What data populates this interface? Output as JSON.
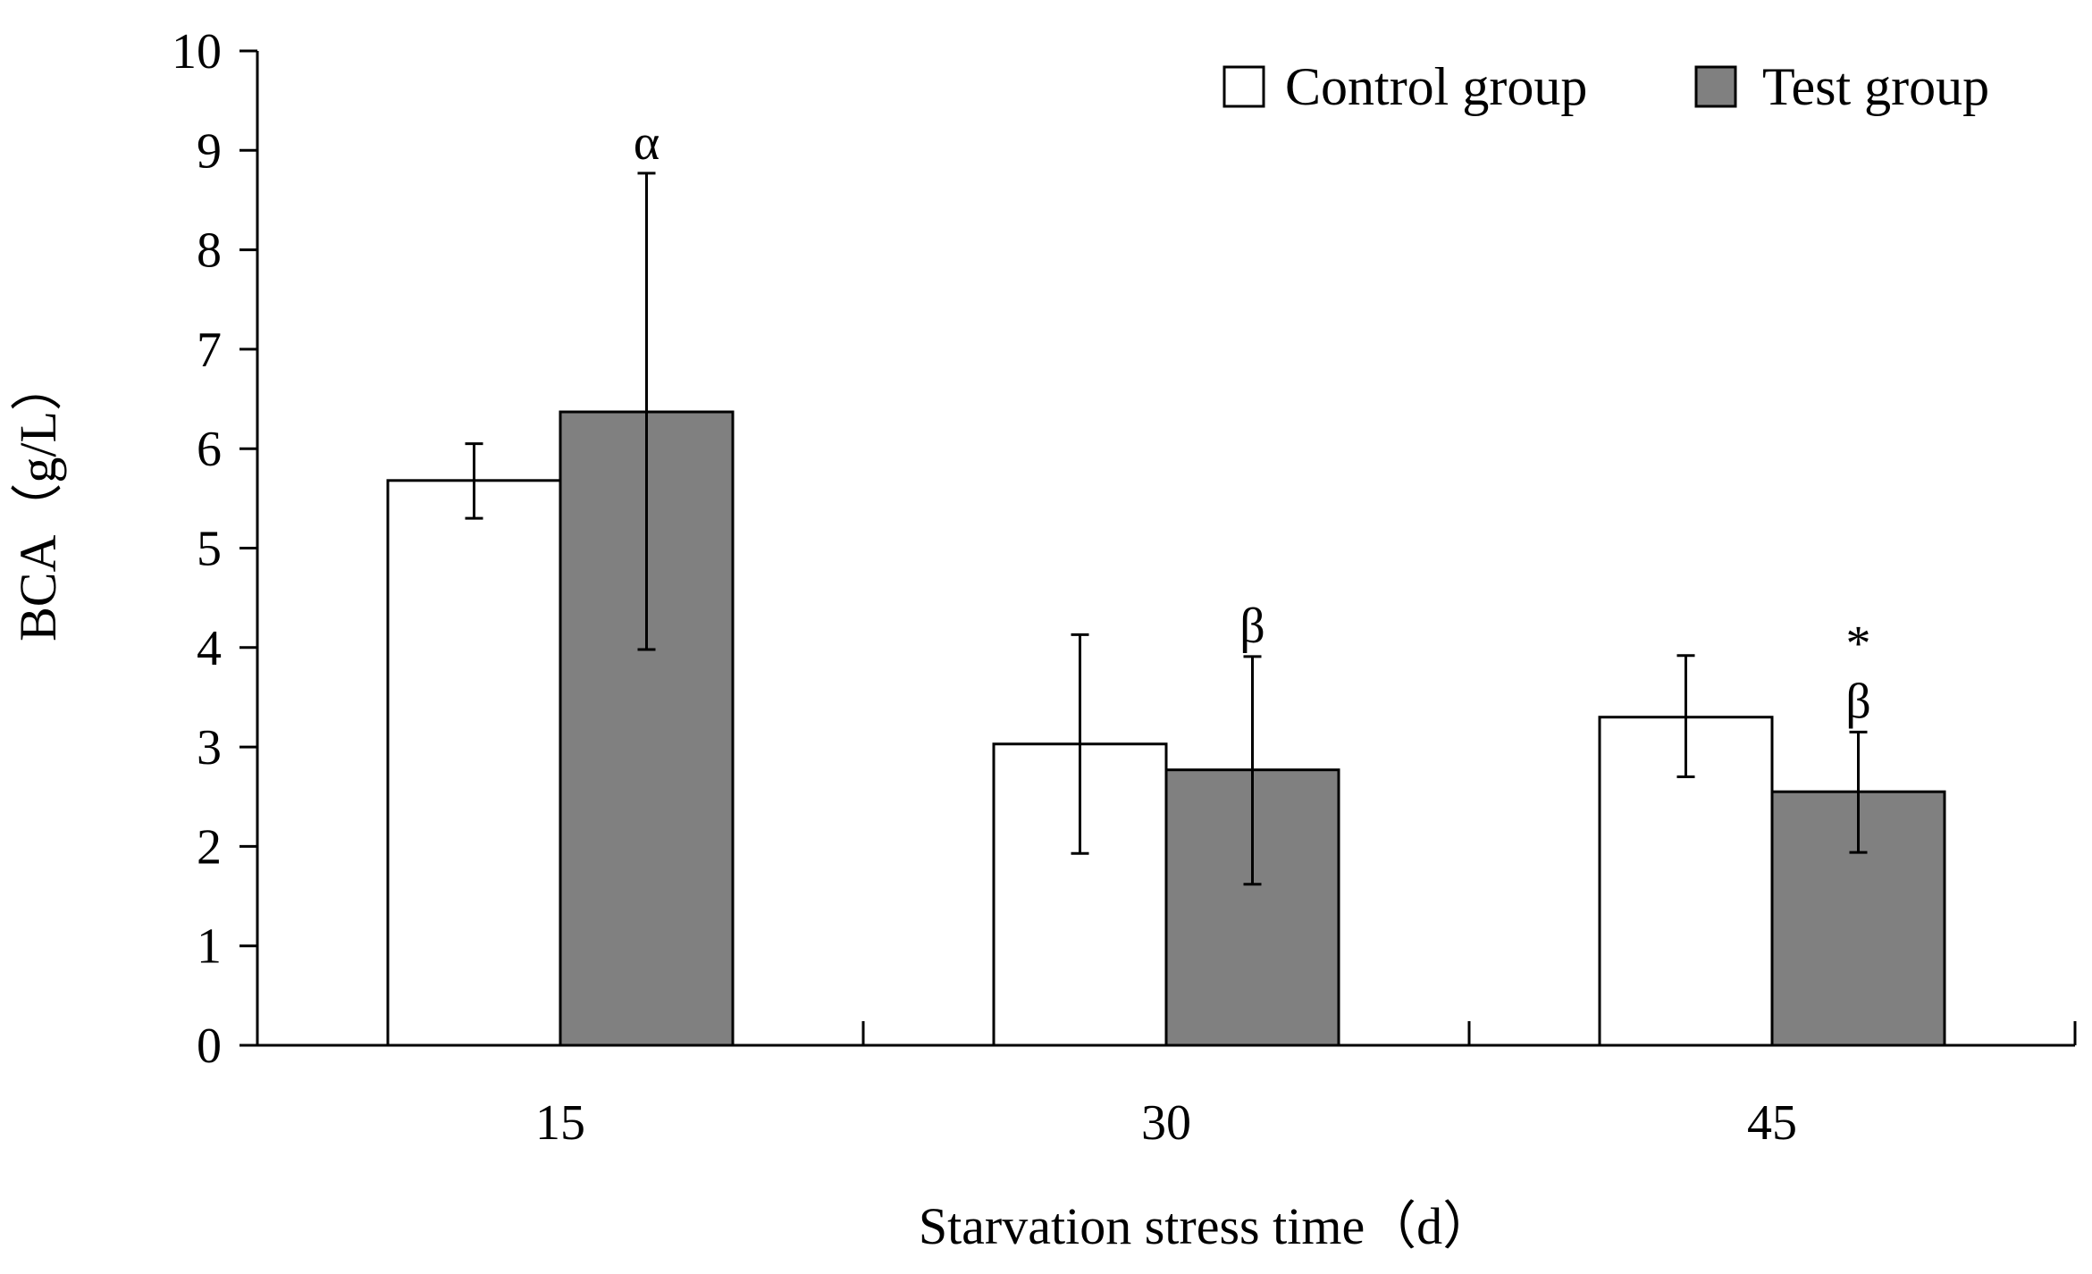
{
  "chart_data": {
    "type": "bar",
    "title": "",
    "xlabel": "Starvation stress time（d）",
    "ylabel": "BCA（g/L）",
    "categories": [
      "15",
      "30",
      "45"
    ],
    "ylim": [
      0,
      10
    ],
    "yticks": [
      "0",
      "1",
      "2",
      "3",
      "4",
      "5",
      "6",
      "7",
      "8",
      "9",
      "10"
    ],
    "grid": false,
    "legend_position": "top-right",
    "series": [
      {
        "name": "Control group",
        "color": "#ffffff",
        "values": [
          5.68,
          3.03,
          3.3
        ],
        "err_low": [
          5.3,
          1.93,
          2.7
        ],
        "err_high": [
          6.05,
          4.13,
          3.92
        ],
        "annotations": [
          "",
          "",
          ""
        ]
      },
      {
        "name": "Test group",
        "color": "#808080",
        "values": [
          6.37,
          2.77,
          2.55
        ],
        "err_low": [
          3.98,
          1.62,
          1.94
        ],
        "err_high": [
          8.77,
          3.91,
          3.15
        ],
        "annotations": [
          "α",
          "β",
          "*\nβ"
        ]
      }
    ]
  }
}
